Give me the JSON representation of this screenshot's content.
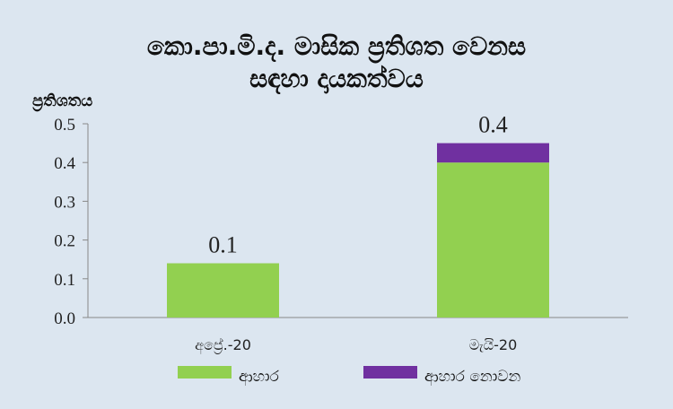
{
  "chart_data": {
    "type": "bar",
    "stacked": true,
    "title_lines": [
      "කො.පා.මි.ද. මාසික ප්‍රතිශත වෙනස",
      "සඳහා දායකත්වය"
    ],
    "ylabel": "ප්‍රතිශතය",
    "xlabel": "",
    "ylim": [
      0,
      0.5
    ],
    "yticks": [
      "0.0",
      "0.1",
      "0.2",
      "0.3",
      "0.4",
      "0.5"
    ],
    "categories": [
      "අප්‍රේ.-20",
      "මැයි-20"
    ],
    "series": [
      {
        "name": "ආහාර",
        "color": "#92d050",
        "values": [
          0.14,
          0.4
        ]
      },
      {
        "name": "ආහාර නොවන",
        "color": "#7030a0",
        "values": [
          0.0,
          0.05
        ]
      }
    ],
    "data_labels": [
      "0.1",
      "0.4"
    ],
    "grid": false,
    "legend_position": "bottom"
  }
}
